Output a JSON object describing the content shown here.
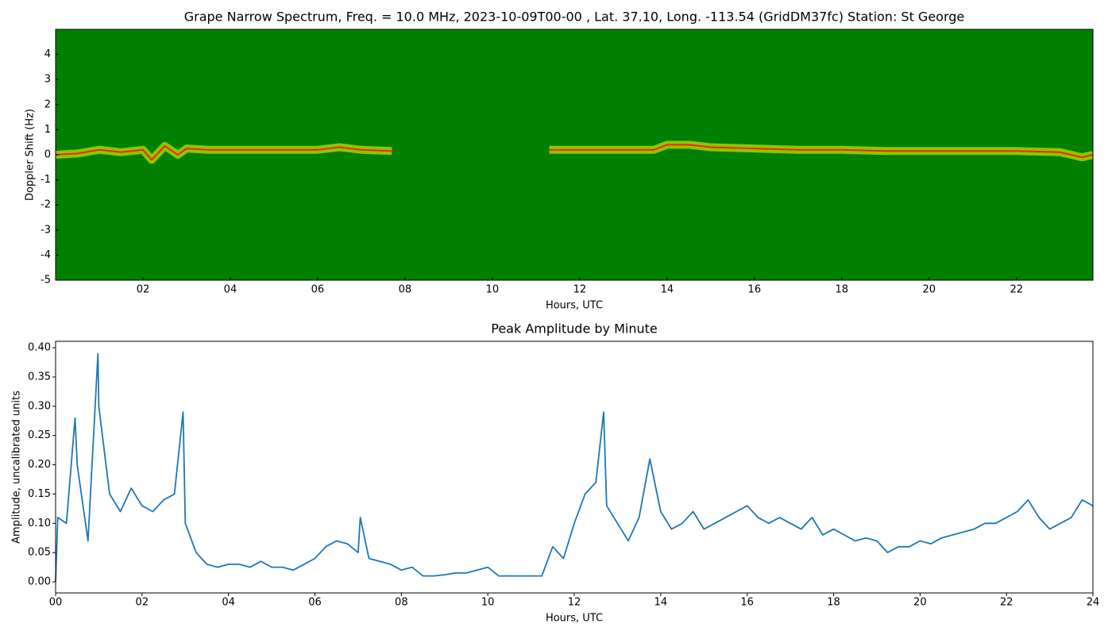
{
  "chart_data": [
    {
      "type": "spectrogram",
      "title": "Grape Narrow Spectrum, Freq. = 10.0 MHz, 2023-10-09T00-00 , Lat.  37.10, Long. -113.54 (GridDM37fc) Station: St George",
      "x_label": "Hours, UTC",
      "y_label": "Doppler Shift (Hz)",
      "background": "#008000",
      "color": "#ffff00",
      "peak_color": "#ff2000",
      "x": [
        0,
        0.5,
        1,
        1.5,
        2,
        2.2,
        2.5,
        2.8,
        3,
        3.5,
        4,
        5,
        6,
        6.5,
        7,
        7.7,
        8,
        11.3,
        12,
        13,
        13.7,
        14,
        14.5,
        15,
        16,
        17,
        18,
        19,
        20,
        21,
        22,
        23,
        23.5,
        23.75
      ],
      "values": [
        0,
        0.05,
        0.2,
        0.1,
        0.2,
        -0.2,
        0.35,
        0,
        0.25,
        0.2,
        0.2,
        0.2,
        0.2,
        0.3,
        0.2,
        0.15,
        null,
        0.2,
        0.2,
        0.2,
        0.2,
        0.4,
        0.4,
        0.3,
        0.25,
        0.2,
        0.2,
        0.15,
        0.15,
        0.15,
        0.15,
        0.1,
        -0.1,
        0
      ],
      "xlim": [
        0,
        23.75
      ],
      "xticks": [
        {
          "value": 2,
          "label": "02"
        },
        {
          "value": 4,
          "label": "04"
        },
        {
          "value": 6,
          "label": "06"
        },
        {
          "value": 8,
          "label": "08"
        },
        {
          "value": 10,
          "label": "10"
        },
        {
          "value": 12,
          "label": "12"
        },
        {
          "value": 14,
          "label": "14"
        },
        {
          "value": 16,
          "label": "16"
        },
        {
          "value": 18,
          "label": "18"
        },
        {
          "value": 20,
          "label": "20"
        },
        {
          "value": 22,
          "label": "22"
        }
      ],
      "ylim": [
        -5,
        5
      ],
      "yticks": [
        -5,
        -4,
        -3,
        -2,
        -1,
        0,
        1,
        2,
        3,
        4
      ]
    },
    {
      "type": "line",
      "title": "Peak Amplitude by Minute",
      "x_label": "Hours, UTC",
      "y_label": "Amplitude, uncalibrated units",
      "color": "#1f77b4",
      "x": [
        0,
        0.05,
        0.25,
        0.45,
        0.5,
        0.75,
        0.98,
        1.0,
        1.25,
        1.5,
        1.75,
        2.0,
        2.25,
        2.5,
        2.75,
        2.95,
        3.0,
        3.25,
        3.5,
        3.75,
        4.0,
        4.25,
        4.5,
        4.75,
        5.0,
        5.25,
        5.5,
        5.75,
        6.0,
        6.25,
        6.5,
        6.75,
        7.0,
        7.05,
        7.25,
        7.5,
        7.75,
        8.0,
        8.25,
        8.5,
        8.75,
        9.0,
        9.25,
        9.5,
        9.75,
        10.0,
        10.25,
        10.5,
        10.75,
        11.0,
        11.25,
        11.5,
        11.75,
        12.0,
        12.25,
        12.5,
        12.68,
        12.75,
        13.0,
        13.25,
        13.5,
        13.75,
        14.0,
        14.25,
        14.5,
        14.75,
        15.0,
        15.25,
        15.5,
        15.75,
        16.0,
        16.25,
        16.5,
        16.75,
        17.0,
        17.25,
        17.5,
        17.75,
        18.0,
        18.25,
        18.5,
        18.75,
        19.0,
        19.25,
        19.5,
        19.75,
        20.0,
        20.25,
        20.5,
        20.75,
        21.0,
        21.25,
        21.5,
        21.75,
        22.0,
        22.25,
        22.5,
        22.75,
        23.0,
        23.25,
        23.5,
        23.75,
        24.0
      ],
      "values": [
        0.0,
        0.11,
        0.1,
        0.28,
        0.2,
        0.07,
        0.39,
        0.3,
        0.15,
        0.12,
        0.16,
        0.13,
        0.12,
        0.14,
        0.15,
        0.29,
        0.1,
        0.05,
        0.03,
        0.025,
        0.03,
        0.03,
        0.025,
        0.035,
        0.025,
        0.025,
        0.02,
        0.03,
        0.04,
        0.06,
        0.07,
        0.065,
        0.05,
        0.11,
        0.04,
        0.035,
        0.03,
        0.02,
        0.025,
        0.01,
        0.01,
        0.012,
        0.015,
        0.015,
        0.02,
        0.025,
        0.01,
        0.01,
        0.01,
        0.01,
        0.01,
        0.06,
        0.04,
        0.1,
        0.15,
        0.17,
        0.29,
        0.13,
        0.1,
        0.07,
        0.11,
        0.21,
        0.12,
        0.09,
        0.1,
        0.12,
        0.09,
        0.1,
        0.11,
        0.12,
        0.13,
        0.11,
        0.1,
        0.11,
        0.1,
        0.09,
        0.11,
        0.08,
        0.09,
        0.08,
        0.07,
        0.075,
        0.07,
        0.05,
        0.06,
        0.06,
        0.07,
        0.065,
        0.075,
        0.08,
        0.085,
        0.09,
        0.1,
        0.1,
        0.11,
        0.12,
        0.14,
        0.11,
        0.09,
        0.1,
        0.11,
        0.14,
        0.13
      ],
      "xlim": [
        0,
        24
      ],
      "xticks": [
        {
          "value": 0,
          "label": "00"
        },
        {
          "value": 2,
          "label": "02"
        },
        {
          "value": 4,
          "label": "04"
        },
        {
          "value": 6,
          "label": "06"
        },
        {
          "value": 8,
          "label": "08"
        },
        {
          "value": 10,
          "label": "10"
        },
        {
          "value": 12,
          "label": "12"
        },
        {
          "value": 14,
          "label": "14"
        },
        {
          "value": 16,
          "label": "16"
        },
        {
          "value": 18,
          "label": "18"
        },
        {
          "value": 20,
          "label": "20"
        },
        {
          "value": 22,
          "label": "22"
        },
        {
          "value": 24,
          "label": "24"
        }
      ],
      "ylim": [
        -0.019,
        0.411
      ],
      "yticks": [
        {
          "value": 0,
          "label": "0.00"
        },
        {
          "value": 0.05,
          "label": "0.05"
        },
        {
          "value": 0.1,
          "label": "0.10"
        },
        {
          "value": 0.15,
          "label": "0.15"
        },
        {
          "value": 0.2,
          "label": "0.20"
        },
        {
          "value": 0.25,
          "label": "0.25"
        },
        {
          "value": 0.3,
          "label": "0.30"
        },
        {
          "value": 0.35,
          "label": "0.35"
        },
        {
          "value": 0.4,
          "label": "0.40"
        }
      ]
    }
  ]
}
